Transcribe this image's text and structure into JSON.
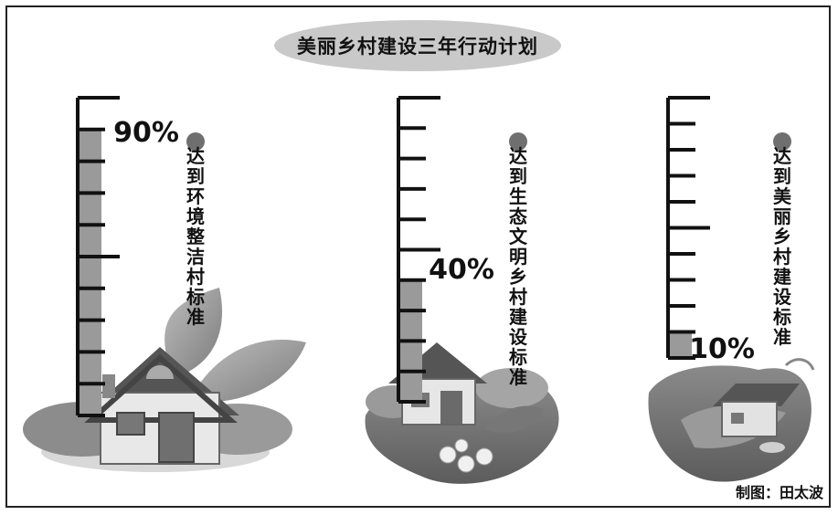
{
  "chart_data": {
    "type": "bar",
    "title": "美丽乡村建设三年行动计划",
    "categories": [
      "达到环境整洁村标准",
      "达到生态文明乡村建设标准",
      "达到美丽乡村建设标准"
    ],
    "values": [
      90,
      40,
      10
    ],
    "value_labels": [
      "90%",
      "40%",
      "10%"
    ],
    "ylim": [
      0,
      100
    ],
    "marker_color": "#6f6f6f",
    "fill_color": "#9a9a9a"
  },
  "credit": "制图：田太波"
}
